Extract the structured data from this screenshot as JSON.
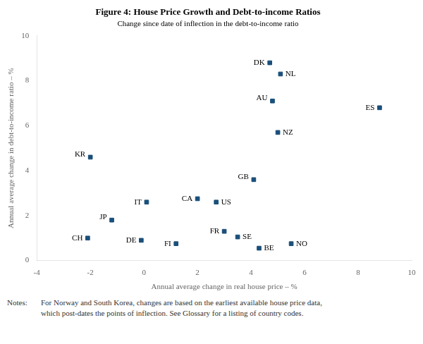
{
  "chart_data": {
    "type": "scatter",
    "title": "Figure 4: House Price Growth and Debt-to-income Ratios",
    "subtitle": "Change since date of inflection in the debt-to-income ratio",
    "xlabel": "Annual average change in real house price – %",
    "ylabel": "Annual average change in debt-to-income ratio – %",
    "xlim": [
      -4,
      10
    ],
    "ylim": [
      0,
      10
    ],
    "xticks": [
      -4,
      -2,
      0,
      2,
      4,
      6,
      8,
      10
    ],
    "yticks": [
      0,
      2,
      4,
      6,
      8,
      10
    ],
    "grid": false,
    "color": "#1a4f7a",
    "marker": "square",
    "point_labels": [
      "DK",
      "NL",
      "AU",
      "ES",
      "NZ",
      "KR",
      "GB",
      "CA",
      "US",
      "IT",
      "JP",
      "FR",
      "SE",
      "CH",
      "DE",
      "FI",
      "BE",
      "NO"
    ],
    "x": [
      4.7,
      5.1,
      4.8,
      8.8,
      5.0,
      -2.0,
      4.1,
      2.0,
      2.7,
      0.1,
      -1.2,
      3.0,
      3.5,
      -2.1,
      -0.1,
      1.2,
      4.3,
      5.5
    ],
    "values": [
      8.8,
      8.3,
      7.1,
      6.8,
      5.7,
      4.6,
      3.6,
      2.75,
      2.6,
      2.6,
      1.8,
      1.3,
      1.05,
      1.0,
      0.9,
      0.75,
      0.55,
      0.75
    ],
    "notes_label": "Notes:",
    "notes": "For Norway and South Korea, changes are based on the earliest available house price data,\nwhich post-dates the points of inflection. See Glossary for a listing of country codes."
  }
}
